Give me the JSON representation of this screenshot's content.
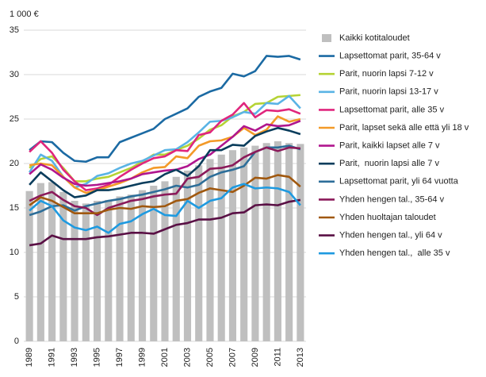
{
  "chart_data": {
    "type": "bar",
    "y_label": "1 000 €",
    "categories": [
      "1989",
      null,
      "1991",
      null,
      "1993",
      null,
      "1995",
      null,
      "1997",
      null,
      "1999",
      null,
      "2001",
      null,
      "2003",
      null,
      "2005",
      null,
      "2007",
      null,
      "2009",
      null,
      "2011",
      null,
      "2013"
    ],
    "ylim": [
      0,
      35
    ],
    "yticks": [
      0,
      5,
      10,
      15,
      20,
      25,
      30,
      35
    ],
    "grid": true,
    "legend": "right",
    "series": [
      {
        "name": "Kaikki kotitaloudet",
        "type": "bar",
        "color": "#bfbfbf",
        "values": [
          16.9,
          17.8,
          17.9,
          16.8,
          15.8,
          15.5,
          15.8,
          15.9,
          16.3,
          16.5,
          17.0,
          17.5,
          18.0,
          18.5,
          19.2,
          19.8,
          20.5,
          21.0,
          21.5,
          21.8,
          22.0,
          22.3,
          22.5,
          22.3,
          22.2
        ]
      },
      {
        "name": "Lapsettomat parit, 35-64 v",
        "type": "line",
        "color": "#1b6aa3",
        "values": [
          21.5,
          22.5,
          22.4,
          21.2,
          20.3,
          20.2,
          20.7,
          20.7,
          22.4,
          22.9,
          23.4,
          23.9,
          25.0,
          25.6,
          26.2,
          27.5,
          28.1,
          28.5,
          30.1,
          29.8,
          30.4,
          32.1,
          32.0,
          32.1,
          31.7
        ]
      },
      {
        "name": "Parit, nuorin lapsi 7-12 v",
        "type": "line",
        "color": "#b5d334",
        "values": [
          19.5,
          20.5,
          20.8,
          19.5,
          18.0,
          18.0,
          18.3,
          18.5,
          19.0,
          19.5,
          20.2,
          21.0,
          21.0,
          21.5,
          22.0,
          22.8,
          23.8,
          24.3,
          25.3,
          25.8,
          26.7,
          26.8,
          27.5,
          27.6,
          27.7
        ]
      },
      {
        "name": "Parit, nuorin lapsi 13-17 v",
        "type": "line",
        "color": "#5ab4e5",
        "values": [
          19.0,
          21.0,
          20.3,
          18.5,
          17.3,
          17.7,
          18.6,
          18.9,
          19.5,
          20.0,
          20.3,
          20.9,
          21.5,
          21.6,
          22.4,
          23.5,
          24.7,
          24.8,
          25.2,
          25.8,
          25.6,
          26.8,
          26.7,
          27.6,
          26.2
        ]
      },
      {
        "name": "Lapsettomat parit, alle 35 v",
        "type": "line",
        "color": "#e0267d",
        "values": [
          21.3,
          22.5,
          21.2,
          19.3,
          18.0,
          17.0,
          17.2,
          17.6,
          18.5,
          19.3,
          20.0,
          20.6,
          20.8,
          21.5,
          21.4,
          23.2,
          23.5,
          24.8,
          25.5,
          26.8,
          25.2,
          26.0,
          25.9,
          26.1,
          25.6
        ]
      },
      {
        "name": "Parit, lapset sekä alle että yli 18 v",
        "type": "line",
        "color": "#f39a28",
        "values": [
          19.8,
          20.0,
          19.8,
          18.5,
          17.3,
          16.7,
          17.0,
          17.4,
          17.8,
          18.3,
          19.0,
          19.5,
          19.6,
          20.8,
          20.6,
          22.0,
          22.5,
          22.6,
          23.0,
          24.0,
          23.2,
          23.8,
          25.3,
          24.7,
          25.0
        ]
      },
      {
        "name": "Parit, kaikki lapset alle 7 v",
        "type": "line",
        "color": "#b0168e",
        "values": [
          18.8,
          19.9,
          19.3,
          18.4,
          17.7,
          17.5,
          17.6,
          17.8,
          18.0,
          18.3,
          18.8,
          19.0,
          19.2,
          19.3,
          19.7,
          20.5,
          21.0,
          22.0,
          23.0,
          24.2,
          23.7,
          24.4,
          24.2,
          24.3,
          24.8
        ]
      },
      {
        "name": "Parit,  nuorin lapsi alle 7 v",
        "type": "line",
        "color": "#0a3d5c",
        "values": [
          17.6,
          19.0,
          18.0,
          17.0,
          16.2,
          16.4,
          17.0,
          17.0,
          17.2,
          17.5,
          17.8,
          18.0,
          18.8,
          19.3,
          18.6,
          19.7,
          21.5,
          21.5,
          22.1,
          22.0,
          23.1,
          23.6,
          24.0,
          23.7,
          23.3
        ]
      },
      {
        "name": "Lapsettomat parit, yli 64 vuotta",
        "type": "line",
        "color": "#2d6e99",
        "values": [
          14.2,
          14.6,
          15.2,
          15.3,
          14.7,
          15.2,
          15.5,
          15.8,
          16.0,
          16.3,
          16.5,
          16.8,
          17.1,
          17.5,
          17.3,
          17.6,
          18.5,
          19.0,
          19.3,
          19.7,
          21.3,
          21.8,
          21.8,
          22.0,
          21.6
        ]
      },
      {
        "name": "Yhden hengen tal., 35-64 v",
        "type": "line",
        "color": "#8b1a5a",
        "values": [
          15.8,
          16.4,
          16.8,
          15.9,
          15.2,
          15.0,
          14.2,
          15.0,
          15.4,
          15.8,
          16.0,
          16.3,
          16.5,
          16.6,
          18.3,
          18.5,
          19.4,
          19.5,
          19.8,
          20.7,
          21.3,
          21.8,
          21.4,
          21.8,
          21.7
        ]
      },
      {
        "name": "Yhden huoltajan taloudet",
        "type": "line",
        "color": "#a0580f",
        "values": [
          15.3,
          16.2,
          15.8,
          15.1,
          14.4,
          14.4,
          14.4,
          14.8,
          15.0,
          14.9,
          15.2,
          15.1,
          15.2,
          15.8,
          16.0,
          16.7,
          17.2,
          17.0,
          16.8,
          17.5,
          18.4,
          18.3,
          18.7,
          18.5,
          17.4
        ]
      },
      {
        "name": "Yhden hengen tal., yli 64 v",
        "type": "line",
        "color": "#5a1045",
        "values": [
          10.8,
          11.0,
          11.9,
          11.5,
          11.5,
          11.5,
          11.7,
          11.8,
          12.0,
          12.2,
          12.2,
          12.1,
          12.6,
          13.1,
          13.3,
          13.7,
          13.7,
          13.9,
          14.4,
          14.5,
          15.3,
          15.4,
          15.3,
          15.7,
          15.9
        ]
      },
      {
        "name": "Yhden hengen tal.,  alle 35 v",
        "type": "line",
        "color": "#1e9ae0",
        "values": [
          14.7,
          15.8,
          15.2,
          13.6,
          12.8,
          12.5,
          12.9,
          12.2,
          13.2,
          13.5,
          14.3,
          14.9,
          14.2,
          14.1,
          15.8,
          15.0,
          15.8,
          16.1,
          17.3,
          17.7,
          17.2,
          17.3,
          17.2,
          16.8,
          15.3
        ]
      }
    ]
  }
}
